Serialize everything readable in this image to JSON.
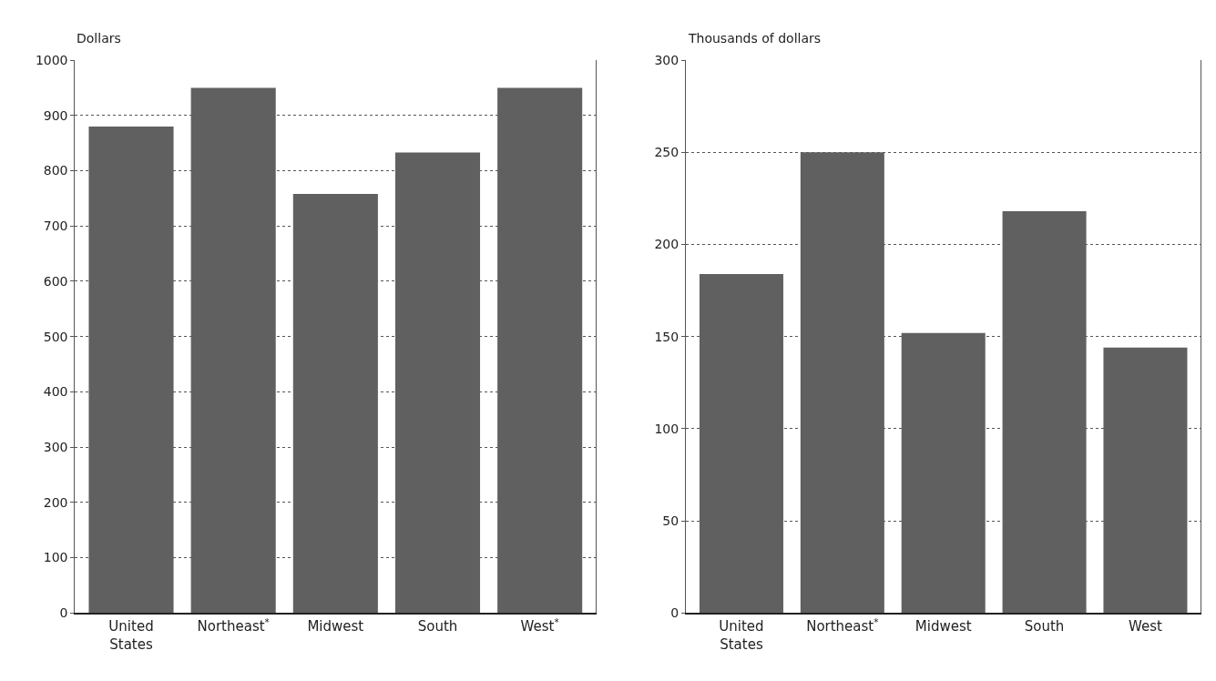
{
  "chart_data": [
    {
      "type": "bar",
      "ylabel": "Dollars",
      "categories": [
        "United States",
        "Northeast$^{*}$",
        "Midwest",
        "South",
        "West$^{*}$"
      ],
      "values": [
        880,
        950,
        758,
        833,
        950
      ],
      "color": "#606060",
      "ylim": [
        0,
        1000
      ],
      "yticks": [
        0,
        100,
        200,
        300,
        400,
        500,
        600,
        700,
        800,
        900,
        1000
      ],
      "grid": "y"
    },
    {
      "type": "bar",
      "ylabel": "Thousands of dollars",
      "categories": [
        "United States",
        "Northeast$^{*}$",
        "Midwest",
        "South",
        "West"
      ],
      "values": [
        184,
        250,
        152,
        218,
        144
      ],
      "color": "#606060",
      "ylim": [
        0,
        300
      ],
      "yticks": [
        0,
        50,
        100,
        150,
        200,
        250,
        300
      ],
      "grid": "y"
    }
  ]
}
